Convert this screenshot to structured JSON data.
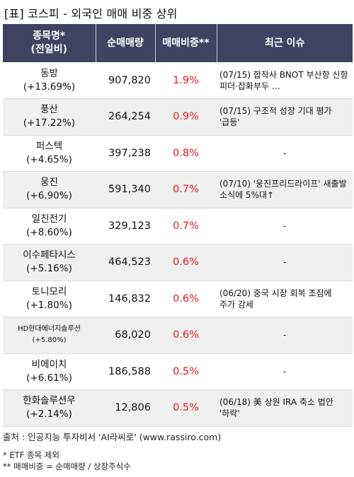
{
  "title": "[표] 코스피 - 외국인 매매 비중 상위",
  "headers": {
    "name_line1": "종목명*",
    "name_line2": "(전일비)",
    "volume": "순매매량",
    "ratio": "매매비중**",
    "issue": "최근 이슈"
  },
  "rows": [
    {
      "name": "동방",
      "change": "(+13.69%)",
      "volume": "907,820",
      "ratio": "1.9%",
      "issue": "(07/15) 합작사 BNOT 부산항 신항 피더·잡화부두 …"
    },
    {
      "name": "풍산",
      "change": "(+17.22%)",
      "volume": "264,254",
      "ratio": "0.9%",
      "issue": "(07/15) 구조적 성장 기대 평가 '급등'"
    },
    {
      "name": "퍼스텍",
      "change": "(+4.65%)",
      "volume": "397,238",
      "ratio": "0.8%",
      "issue": "-"
    },
    {
      "name": "웅진",
      "change": "(+6.90%)",
      "volume": "591,340",
      "ratio": "0.7%",
      "issue": "(07/10) '웅진프리드라이프' 새출발 소식에 5%대↑"
    },
    {
      "name": "일진전기",
      "change": "(+8.60%)",
      "volume": "329,123",
      "ratio": "0.7%",
      "issue": "-"
    },
    {
      "name": "이수페타시스",
      "change": "(+5.16%)",
      "volume": "464,523",
      "ratio": "0.6%",
      "issue": "-"
    },
    {
      "name": "토니모리",
      "change": "(+1.80%)",
      "volume": "146,832",
      "ratio": "0.6%",
      "issue": "(06/20) 중국 시장 회복 조짐에 주가 강세"
    },
    {
      "name": "HD현대에너지솔루션",
      "change": "(+5.80%)",
      "volume": "68,020",
      "ratio": "0.6%",
      "issue": "-"
    },
    {
      "name": "비에이치",
      "change": "(+6.61%)",
      "volume": "186,588",
      "ratio": "0.5%",
      "issue": "-"
    },
    {
      "name": "한화솔루션우",
      "change": "(+2.14%)",
      "volume": "12,806",
      "ratio": "0.5%",
      "issue": "(06/18) 美 상원 IRA 축소 법안 '하락'"
    }
  ],
  "footer": {
    "source": "출처 : 인공지능 투자비서 'AI라씨로' (www.rassiro.com)",
    "note1": "* ETF 종목 제외",
    "note2": "** 매매비중 = 순매매량 / 상장주식수"
  },
  "colors": {
    "header_bg": "#3f4361",
    "ratio_text": "#e31919",
    "even_row_bg": "#f0f0f0"
  }
}
